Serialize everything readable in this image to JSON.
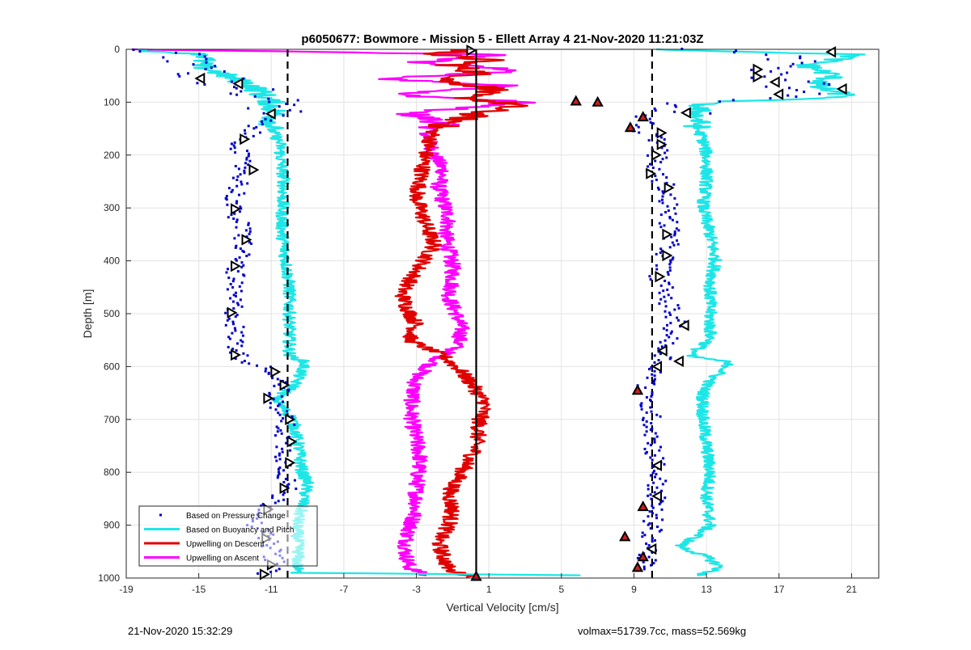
{
  "chart_data": {
    "type": "scatter",
    "title": "p6050677: Bowmore - Mission 5 - Ellett Array 4 21-Nov-2020 11:21:03Z",
    "xlabel": "Vertical Velocity [cm/s]",
    "ylabel": "Depth [m]",
    "xlim": [
      -19,
      22.5
    ],
    "ylim": [
      0,
      1000
    ],
    "y_reversed": true,
    "grid": true,
    "xticks": [
      -19,
      -15,
      -11,
      -7,
      -3,
      1,
      5,
      9,
      13,
      17,
      21
    ],
    "yticks": [
      0,
      100,
      200,
      300,
      400,
      500,
      600,
      700,
      800,
      900,
      1000
    ],
    "legend": {
      "placement": "bottom-left",
      "entries": [
        "Based on Pressure Change",
        "Based on Buoyancy and Pitch",
        "Upwelling on Descent",
        "Upwelling on Ascent"
      ]
    },
    "reference_lines": [
      {
        "x": -10.1,
        "style": "dashed"
      },
      {
        "x": 0.3,
        "style": "solid"
      },
      {
        "x": 10.0,
        "style": "dashed"
      }
    ],
    "colors": {
      "pressure": "#0000cc",
      "buoyancy": "#1ee6e6",
      "descent": "#e00000",
      "ascent": "#ff00ff",
      "marker_fill": "#c82020"
    },
    "series": [
      {
        "name": "Based on Pressure Change",
        "style": "dots",
        "profiles": [
          {
            "depth": [
              0,
              20,
              50,
              70,
              90,
              110,
              125,
              150,
              175,
              200,
              230,
              260,
              300,
              340,
              370,
              410,
              450,
              500,
              540,
              580,
              600,
              620,
              640,
              660,
              700,
              740,
              790,
              830,
              860,
              900,
              940,
              970,
              995
            ],
            "x": [
              -18.0,
              -15.5,
              -14.5,
              -13.0,
              -11.5,
              -11.0,
              -11.2,
              -12.0,
              -12.6,
              -12.8,
              -12.5,
              -12.8,
              -13.2,
              -12.6,
              -12.5,
              -12.9,
              -13.2,
              -13.0,
              -13.0,
              -12.8,
              -11.6,
              -10.5,
              -10.3,
              -11.0,
              -10.2,
              -10.3,
              -10.2,
              -10.1,
              -11.0,
              -11.8,
              -11.0,
              -10.8,
              -11.4
            ]
          },
          {
            "depth": [
              0,
              20,
              40,
              60,
              80,
              100,
              120,
              135,
              150,
              165,
              180,
              200,
              230,
              260,
              300,
              350,
              400,
              430,
              480,
              520,
              560,
              580,
              600,
              620,
              650,
              700,
              750,
              800,
              850,
              900,
              930,
              960,
              985
            ],
            "x": [
              13.5,
              18.5,
              16.0,
              17.5,
              19.0,
              13.0,
              11.5,
              9.8,
              9.2,
              10.2,
              10.5,
              10.3,
              10.0,
              10.8,
              10.9,
              11.0,
              10.7,
              10.4,
              10.9,
              11.3,
              10.7,
              10.7,
              10.4,
              10.0,
              9.5,
              10.0,
              10.1,
              10.3,
              10.2,
              10.0,
              10.0,
              9.7,
              9.5
            ]
          }
        ]
      },
      {
        "name": "Based on Buoyancy and Pitch",
        "style": "line",
        "profiles": [
          {
            "depth": [
              0,
              10,
              30,
              50,
              70,
              85,
              100,
              120,
              150,
              180,
              200,
              250,
              300,
              350,
              400,
              450,
              500,
              550,
              580,
              590,
              600,
              620,
              640,
              660,
              680,
              700,
              750,
              800,
              820,
              850,
              900,
              950,
              990,
              995
            ],
            "x": [
              -19.0,
              -14.5,
              -15.0,
              -13.5,
              -12.0,
              -11.5,
              -11.0,
              -10.8,
              -11.0,
              -10.5,
              -10.5,
              -10.3,
              -10.4,
              -10.4,
              -10.2,
              -10.0,
              -10.0,
              -10.0,
              -10.0,
              -9.2,
              -9.2,
              -9.5,
              -9.8,
              -10.8,
              -10.3,
              -9.8,
              -9.5,
              -9.3,
              -9.0,
              -9.2,
              -9.6,
              -9.5,
              -9.6,
              7.0
            ]
          },
          {
            "depth": [
              0,
              10,
              30,
              50,
              70,
              90,
              100,
              110,
              130,
              150,
              170,
              200,
              250,
              300,
              350,
              400,
              450,
              500,
              550,
              580,
              590,
              600,
              620,
              640,
              660,
              700,
              750,
              800,
              850,
              900,
              920,
              940,
              960,
              980,
              995
            ],
            "x": [
              10.0,
              21.5,
              18.5,
              20.0,
              19.0,
              21.0,
              13.0,
              12.5,
              12.5,
              12.5,
              12.8,
              13.0,
              13.0,
              12.8,
              13.2,
              13.5,
              13.2,
              13.2,
              13.2,
              12.0,
              14.0,
              14.2,
              13.4,
              12.9,
              12.8,
              12.8,
              13.0,
              13.2,
              13.0,
              13.2,
              12.5,
              11.5,
              13.0,
              13.8,
              12.6
            ]
          }
        ]
      },
      {
        "name": "Upwelling on Descent",
        "style": "line",
        "depth": [
          0,
          10,
          20,
          30,
          45,
          60,
          75,
          90,
          105,
          120,
          150,
          200,
          250,
          280,
          300,
          330,
          370,
          400,
          430,
          460,
          490,
          520,
          550,
          580,
          610,
          640,
          670,
          700,
          730,
          760,
          800,
          840,
          870,
          900,
          930,
          960,
          985,
          1000
        ],
        "x": [
          0.0,
          -2.0,
          1.0,
          -1.0,
          0.5,
          -1.5,
          1.5,
          -0.5,
          2.5,
          0.5,
          -2.0,
          -2.5,
          -2.8,
          -3.0,
          -2.8,
          -2.5,
          -2.0,
          -2.6,
          -3.2,
          -3.8,
          -3.5,
          -3.0,
          -3.4,
          -1.5,
          -0.5,
          0.2,
          0.8,
          0.5,
          0.4,
          0.2,
          -0.5,
          -1.2,
          -1.0,
          -1.2,
          -1.8,
          -1.5,
          -1.2,
          0.3
        ]
      },
      {
        "name": "Upwelling on Ascent",
        "style": "line",
        "depth": [
          0,
          10,
          25,
          40,
          55,
          70,
          85,
          100,
          120,
          140,
          160,
          180,
          200,
          230,
          260,
          290,
          320,
          350,
          380,
          410,
          440,
          470,
          500,
          530,
          560,
          590,
          620,
          650,
          680,
          710,
          740,
          770,
          800,
          830,
          860,
          890,
          920,
          950,
          980,
          995
        ],
        "x": [
          -19.0,
          1.5,
          -3.0,
          3.0,
          -5.0,
          2.5,
          -4.5,
          3.0,
          -3.5,
          -1.5,
          -2.5,
          -2.2,
          -2.0,
          -1.5,
          -1.8,
          -1.5,
          -1.2,
          -1.4,
          -1.2,
          -1.0,
          -1.0,
          -1.2,
          -0.8,
          -0.5,
          -0.7,
          -2.0,
          -3.0,
          -3.2,
          -3.3,
          -3.2,
          -3.0,
          -2.8,
          -2.9,
          -3.0,
          -3.0,
          -3.2,
          -3.5,
          -3.6,
          -3.4,
          -2.5
        ]
      }
    ],
    "markers": {
      "up": [
        {
          "x": 5.8,
          "depth": 98
        },
        {
          "x": 7.0,
          "depth": 100
        },
        {
          "x": 9.5,
          "depth": 128
        },
        {
          "x": 8.8,
          "depth": 148
        },
        {
          "x": 9.2,
          "depth": 645
        },
        {
          "x": 9.5,
          "depth": 865
        },
        {
          "x": 8.5,
          "depth": 922
        },
        {
          "x": 9.5,
          "depth": 960
        },
        {
          "x": 9.2,
          "depth": 980
        },
        {
          "x": 0.3,
          "depth": 997
        }
      ],
      "right": [
        {
          "x": 0.0,
          "depth": 2
        },
        {
          "x": 15.8,
          "depth": 38
        },
        {
          "x": 15.8,
          "depth": 52
        },
        {
          "x": -12.5,
          "depth": 170
        },
        {
          "x": -12.0,
          "depth": 228
        },
        {
          "x": -13.0,
          "depth": 302
        },
        {
          "x": -12.4,
          "depth": 360
        },
        {
          "x": -13.0,
          "depth": 410
        },
        {
          "x": -13.2,
          "depth": 498
        },
        {
          "x": -13.0,
          "depth": 578
        },
        {
          "x": -10.8,
          "depth": 610
        },
        {
          "x": -10.3,
          "depth": 635
        },
        {
          "x": -11.2,
          "depth": 660
        },
        {
          "x": -10.0,
          "depth": 700
        },
        {
          "x": -9.9,
          "depth": 742
        },
        {
          "x": -10.0,
          "depth": 782
        },
        {
          "x": -10.3,
          "depth": 830
        },
        {
          "x": -11.2,
          "depth": 870
        },
        {
          "x": -11.3,
          "depth": 925
        },
        {
          "x": -11.0,
          "depth": 975
        },
        {
          "x": -11.4,
          "depth": 993
        },
        {
          "x": 10.5,
          "depth": 158
        },
        {
          "x": 10.5,
          "depth": 180
        },
        {
          "x": 10.2,
          "depth": 200
        },
        {
          "x": 9.9,
          "depth": 235
        },
        {
          "x": 10.9,
          "depth": 262
        },
        {
          "x": 10.8,
          "depth": 350
        },
        {
          "x": 10.8,
          "depth": 390
        },
        {
          "x": 10.4,
          "depth": 430
        }
      ],
      "left": [
        {
          "x": 19.9,
          "depth": 5
        },
        {
          "x": 16.8,
          "depth": 62
        },
        {
          "x": 20.5,
          "depth": 75
        },
        {
          "x": 17.0,
          "depth": 85
        },
        {
          "x": 11.9,
          "depth": 120
        },
        {
          "x": -12.8,
          "depth": 65
        },
        {
          "x": -14.9,
          "depth": 55
        },
        {
          "x": -11.0,
          "depth": 122
        },
        {
          "x": 11.8,
          "depth": 522
        },
        {
          "x": 10.6,
          "depth": 570
        },
        {
          "x": 10.3,
          "depth": 600
        },
        {
          "x": 11.5,
          "depth": 590
        },
        {
          "x": 10.3,
          "depth": 787
        },
        {
          "x": 10.3,
          "depth": 845
        },
        {
          "x": 10.0,
          "depth": 945
        }
      ]
    }
  },
  "footer": {
    "left": "21-Nov-2020 15:32:29",
    "right": "volmax=51739.7cc, mass=52.569kg"
  }
}
